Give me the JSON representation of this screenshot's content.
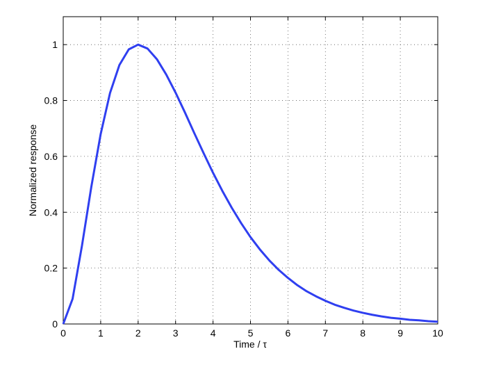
{
  "chart_data": {
    "type": "line",
    "xlabel": "Time / τ",
    "ylabel": "Normalized response",
    "x": [
      0,
      0.25,
      0.5,
      0.75,
      1,
      1.25,
      1.5,
      1.75,
      2,
      2.25,
      2.5,
      2.75,
      3,
      3.25,
      3.5,
      3.75,
      4,
      4.25,
      4.5,
      4.75,
      5,
      5.25,
      5.5,
      5.75,
      6,
      6.25,
      6.5,
      6.75,
      7,
      7.25,
      7.5,
      7.75,
      8,
      8.25,
      8.5,
      8.75,
      9,
      9.25,
      9.5,
      9.75,
      10
    ],
    "series": [
      {
        "color": "#2f3ff0",
        "values": [
          0,
          0.09,
          0.28,
          0.491,
          0.68,
          0.827,
          0.927,
          0.983,
          1,
          0.986,
          0.948,
          0.893,
          0.828,
          0.757,
          0.683,
          0.611,
          0.541,
          0.476,
          0.416,
          0.361,
          0.311,
          0.267,
          0.228,
          0.194,
          0.165,
          0.139,
          0.117,
          0.099,
          0.083,
          0.069,
          0.058,
          0.048,
          0.04,
          0.033,
          0.027,
          0.022,
          0.019,
          0.015,
          0.013,
          0.01,
          0.008
        ]
      }
    ],
    "xlim": [
      0,
      10
    ],
    "ylim": [
      0,
      1.1
    ],
    "xticks": [
      0,
      1,
      2,
      3,
      4,
      5,
      6,
      7,
      8,
      9,
      10
    ],
    "yticks": [
      0,
      0.2,
      0.4,
      0.6,
      0.8,
      1
    ],
    "grid": true
  }
}
